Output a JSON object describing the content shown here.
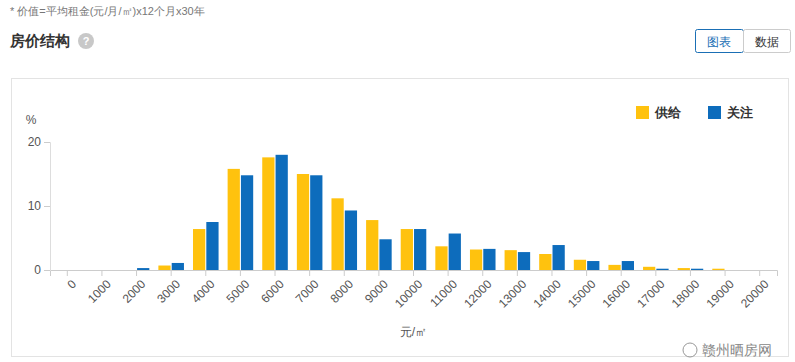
{
  "header": {
    "note": "* 价值=平均租金(元/月/㎡)x12个月x30年",
    "title": "房价结构",
    "help": "?",
    "buttons": [
      "图表",
      "数据"
    ]
  },
  "chart_data": {
    "type": "bar",
    "x_label": "元/㎡",
    "y_label": "%",
    "categories": [
      "0",
      "1000",
      "2000",
      "3000",
      "4000",
      "5000",
      "6000",
      "7000",
      "8000",
      "9000",
      "10000",
      "11000",
      "12000",
      "13000",
      "14000",
      "15000",
      "16000",
      "17000",
      "18000",
      "19000",
      "20000"
    ],
    "series": [
      {
        "name": "供给",
        "color": "#ffc20e",
        "values": [
          0,
          0,
          0,
          0.7,
          6.4,
          15.8,
          17.6,
          15.0,
          11.2,
          7.8,
          6.4,
          3.7,
          3.2,
          3.1,
          2.5,
          1.6,
          0.8,
          0.5,
          0.3,
          0.2,
          0
        ]
      },
      {
        "name": "关注",
        "color": "#0d6cbc",
        "values": [
          0,
          0,
          0.3,
          1.1,
          7.5,
          14.8,
          18.0,
          14.8,
          9.3,
          4.8,
          6.4,
          5.7,
          3.3,
          2.8,
          3.9,
          1.4,
          1.4,
          0.2,
          0.2,
          0,
          0
        ]
      }
    ],
    "ylim": [
      0,
      20
    ],
    "yticks": [
      0,
      10,
      20
    ],
    "grid": false,
    "legend": "top-right"
  },
  "watermark": "赣州晒房网"
}
